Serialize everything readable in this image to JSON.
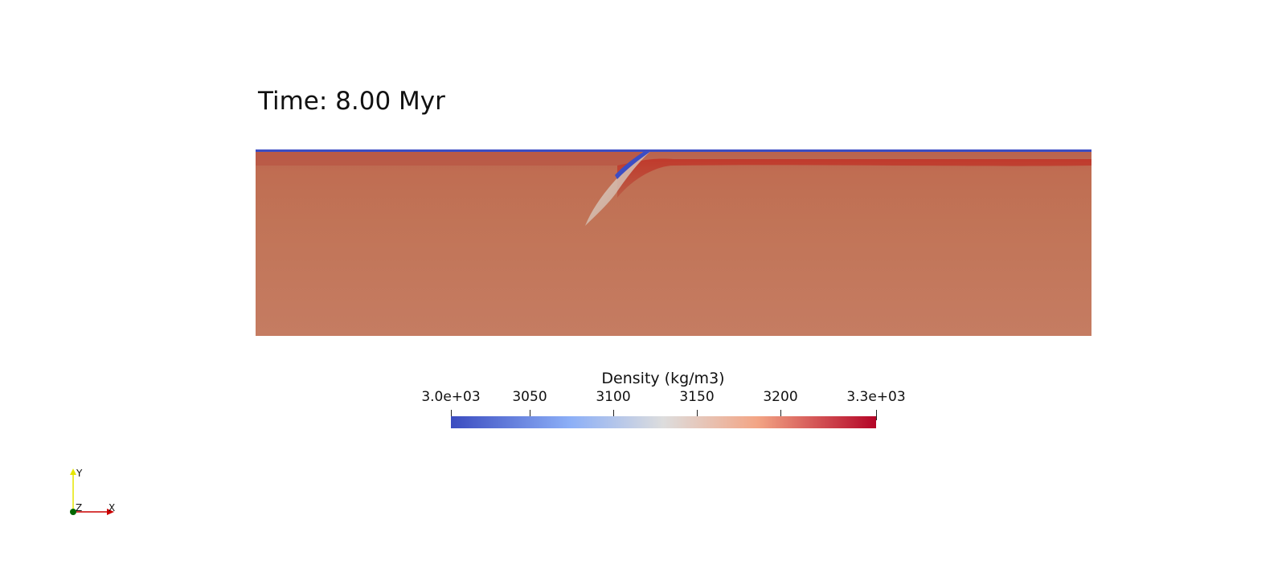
{
  "view": {
    "time_label": "Time: 8.00 Myr"
  },
  "colorbar": {
    "title": "Density (kg/m3)",
    "ticks": [
      "3.0e+03",
      "3050",
      "3100",
      "3150",
      "3200",
      "3.3e+03"
    ],
    "range": [
      3000,
      3300
    ],
    "colormap": {
      "low": "#3b4cc0",
      "mid": "#dddddd",
      "high": "#b40426"
    }
  },
  "axes": {
    "x_label": "X",
    "y_label": "Y",
    "z_label": "Z",
    "colors": {
      "x": "#cc0000",
      "y": "#e6e600",
      "z": "#006600"
    }
  },
  "field_colors": {
    "mantle": "#c27b5f",
    "lithosphere": "#c3402f",
    "crust": "#3c4dc3",
    "slab_highlight": "#d8d0c8"
  }
}
